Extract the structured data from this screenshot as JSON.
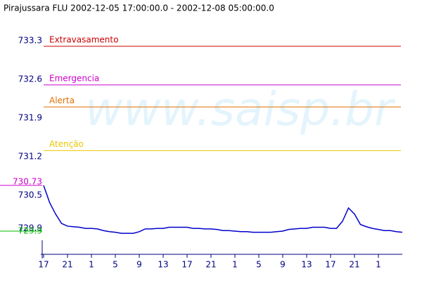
{
  "chart_data": {
    "type": "line",
    "title": "Pirajussara FLU 2002-12-05 17:00:00.0 - 2002-12-08 05:00:00.0",
    "watermark": "www.saisp.br",
    "x": [
      0,
      1,
      2,
      3,
      4,
      5,
      6,
      7,
      8,
      9,
      10,
      11,
      12,
      13,
      14,
      15,
      16,
      17,
      18,
      19,
      20,
      21,
      22,
      23,
      24,
      25,
      26,
      27,
      28,
      29,
      30,
      31,
      32,
      33,
      34,
      35,
      36,
      37,
      38,
      39,
      40,
      41,
      42,
      43,
      44,
      45,
      46,
      47,
      48,
      49,
      50,
      51,
      52,
      53,
      54,
      55,
      56,
      57,
      58,
      59,
      60
    ],
    "series": [
      {
        "name": "Pirajussara FLU",
        "color": "#0000cc",
        "values": [
          730.73,
          730.42,
          730.21,
          730.04,
          729.99,
          729.98,
          729.97,
          729.95,
          729.95,
          729.94,
          729.91,
          729.89,
          729.88,
          729.86,
          729.86,
          729.86,
          729.89,
          729.94,
          729.94,
          729.95,
          729.95,
          729.97,
          729.97,
          729.97,
          729.97,
          729.95,
          729.95,
          729.94,
          729.94,
          729.93,
          729.91,
          729.91,
          729.9,
          729.89,
          729.89,
          729.88,
          729.88,
          729.88,
          729.88,
          729.89,
          729.9,
          729.93,
          729.94,
          729.95,
          729.95,
          729.97,
          729.97,
          729.97,
          729.95,
          729.95,
          730.08,
          730.32,
          730.21,
          730.02,
          729.98,
          729.95,
          729.93,
          729.91,
          729.91,
          729.89,
          729.88
        ]
      }
    ],
    "xlim": [
      0,
      60
    ],
    "xticks": [
      {
        "value": 0,
        "label": "17"
      },
      {
        "value": 4,
        "label": "21"
      },
      {
        "value": 8,
        "label": "1"
      },
      {
        "value": 12,
        "label": "5"
      },
      {
        "value": 16,
        "label": "9"
      },
      {
        "value": 20,
        "label": "13"
      },
      {
        "value": 24,
        "label": "17"
      },
      {
        "value": 28,
        "label": "21"
      },
      {
        "value": 32,
        "label": "1"
      },
      {
        "value": 36,
        "label": "5"
      },
      {
        "value": 40,
        "label": "9"
      },
      {
        "value": 44,
        "label": "13"
      },
      {
        "value": 48,
        "label": "17"
      },
      {
        "value": 52,
        "label": "21"
      },
      {
        "value": 56,
        "label": "1"
      }
    ],
    "ylim": [
      729.48,
      733.58
    ],
    "yticks": [
      733.3,
      732.6,
      731.9,
      731.2,
      730.5,
      729.9
    ],
    "thresholds": [
      {
        "name": "Extravasamento",
        "value": 733.25,
        "color": "#cc0000"
      },
      {
        "name": "Emergencia",
        "value": 732.55,
        "color": "#cc00cc"
      },
      {
        "name": "Alerta",
        "value": 732.15,
        "color": "#e07000"
      },
      {
        "name": "Atenção",
        "value": 731.36,
        "color": "#e8c800"
      }
    ],
    "max_marker": {
      "value": 730.73,
      "color": "#cc00cc"
    },
    "min_marker": {
      "value": 729.9,
      "color": "#00bb00"
    }
  }
}
